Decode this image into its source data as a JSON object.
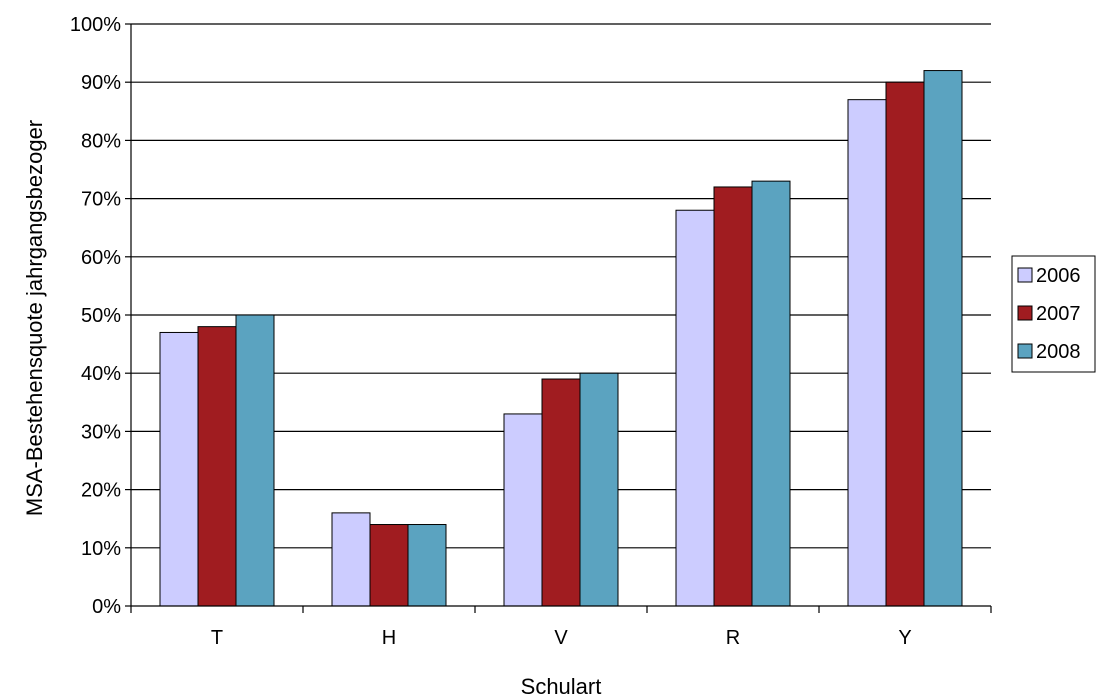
{
  "chart_data": {
    "type": "bar",
    "title": "",
    "xlabel": "Schulart",
    "ylabel": "MSA-Bestehensquote jahrgangsbezoger",
    "categories": [
      "T",
      "H",
      "V",
      "R",
      "Y"
    ],
    "series": [
      {
        "name": "2006",
        "color": "#ccccff",
        "values": [
          47,
          16,
          33,
          68,
          87
        ]
      },
      {
        "name": "2007",
        "color": "#a01c20",
        "values": [
          48,
          14,
          39,
          72,
          90
        ]
      },
      {
        "name": "2008",
        "color": "#5ba3c0",
        "values": [
          50,
          14,
          40,
          73,
          92
        ]
      }
    ],
    "ylim": [
      0,
      100
    ],
    "y_ticks": [
      "0%",
      "10%",
      "20%",
      "30%",
      "40%",
      "50%",
      "60%",
      "70%",
      "80%",
      "90%",
      "100%"
    ],
    "grid": true,
    "legend_position": "right"
  }
}
